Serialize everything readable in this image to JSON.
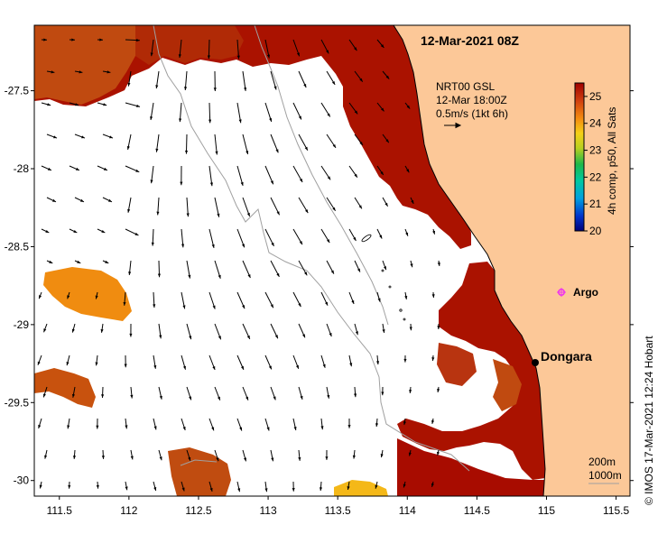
{
  "title_datetime": "12-Mar-2021 08Z",
  "current_layer": {
    "product": "NRT00 GSL",
    "time": "12-Mar 18:00Z",
    "scale_label": "0.5m/s (1kt 6h)"
  },
  "colorbar": {
    "label": "4h comp, p50, All Sats",
    "ticks": [
      "20",
      "21",
      "22",
      "23",
      "24",
      "25"
    ],
    "min": 20,
    "max": 25.5
  },
  "colors": {
    "land": "#fcc898",
    "sst_hot": "#aa0e00",
    "sst_warm": "#c64e10",
    "sst_orange": "#f08c10",
    "sst_yellow": "#f4b818",
    "cloud": "#ffffff",
    "argo": "#ee33ee",
    "city_dot": "#000000",
    "isobath": "#a0a0a0"
  },
  "axes": {
    "x_ticks": [
      "111.5",
      "112",
      "112.5",
      "113",
      "113.5",
      "114",
      "114.5",
      "115",
      "115.5"
    ],
    "y_ticks": [
      "-27.5",
      "-28",
      "-28.5",
      "-29",
      "-29.5",
      "-30"
    ],
    "lon_range": [
      111.32,
      115.6
    ],
    "lat_range": [
      -27.08,
      -30.1
    ]
  },
  "places": [
    {
      "name": "Dongara",
      "lon": 114.93,
      "lat": -29.25,
      "symbol": "dot"
    },
    {
      "name": "Argo",
      "lon": 115.1,
      "lat": -28.82,
      "symbol": "argo-float"
    }
  ],
  "isobath_labels": [
    "200m",
    "1000m"
  ],
  "credit": "© IMOS 17-Mar-2021 12:24 Hobart"
}
